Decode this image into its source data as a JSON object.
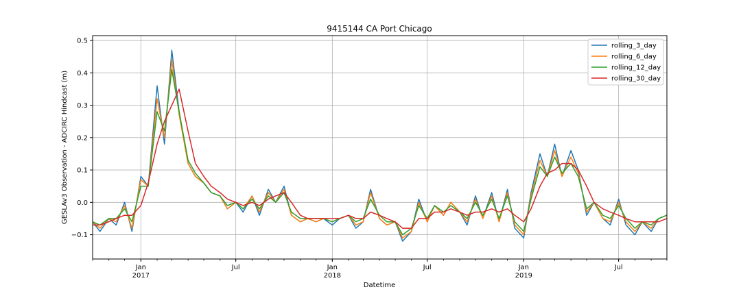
{
  "chart_data": {
    "type": "line",
    "title": "9415144 CA Port Chicago",
    "xlabel": "Datetime",
    "ylabel": "GESLAv3 Observation - ADCIRC Hindcast (m)",
    "xlim": [
      "2016-10-01",
      "2019-10-01"
    ],
    "ylim": [
      -0.175,
      0.515
    ],
    "grid": true,
    "legend_position": "top-right",
    "y_ticks": [
      -0.1,
      0.0,
      0.1,
      0.2,
      0.3,
      0.4,
      0.5
    ],
    "y_tick_labels": [
      "−0.1",
      "0.0",
      "0.1",
      "0.2",
      "0.3",
      "0.4",
      "0.5"
    ],
    "x_major_ticks": [
      {
        "date": "2017-01-01",
        "label": "Jan",
        "sublabel": "2017"
      },
      {
        "date": "2017-07-01",
        "label": "Jul",
        "sublabel": ""
      },
      {
        "date": "2018-01-01",
        "label": "Jan",
        "sublabel": "2018"
      },
      {
        "date": "2018-07-01",
        "label": "Jul",
        "sublabel": ""
      },
      {
        "date": "2019-01-01",
        "label": "Jan",
        "sublabel": "2019"
      },
      {
        "date": "2019-07-01",
        "label": "Jul",
        "sublabel": ""
      }
    ],
    "x": [
      "2016-10-01",
      "2016-10-15",
      "2016-11-01",
      "2016-11-15",
      "2016-12-01",
      "2016-12-15",
      "2017-01-01",
      "2017-01-15",
      "2017-02-01",
      "2017-02-15",
      "2017-03-01",
      "2017-03-15",
      "2017-04-01",
      "2017-04-15",
      "2017-05-01",
      "2017-05-15",
      "2017-06-01",
      "2017-06-15",
      "2017-07-01",
      "2017-07-15",
      "2017-08-01",
      "2017-08-15",
      "2017-09-01",
      "2017-09-15",
      "2017-10-01",
      "2017-10-15",
      "2017-11-01",
      "2017-11-15",
      "2017-12-01",
      "2017-12-15",
      "2018-01-01",
      "2018-01-15",
      "2018-02-01",
      "2018-02-15",
      "2018-03-01",
      "2018-03-15",
      "2018-04-01",
      "2018-04-15",
      "2018-05-01",
      "2018-05-15",
      "2018-06-01",
      "2018-06-15",
      "2018-07-01",
      "2018-07-15",
      "2018-08-01",
      "2018-08-15",
      "2018-09-01",
      "2018-09-15",
      "2018-10-01",
      "2018-10-15",
      "2018-11-01",
      "2018-11-15",
      "2018-12-01",
      "2018-12-15",
      "2019-01-01",
      "2019-01-15",
      "2019-02-01",
      "2019-02-15",
      "2019-03-01",
      "2019-03-15",
      "2019-04-01",
      "2019-04-15",
      "2019-05-01",
      "2019-05-15",
      "2019-06-01",
      "2019-06-15",
      "2019-07-01",
      "2019-07-15",
      "2019-08-01",
      "2019-08-15",
      "2019-09-01",
      "2019-09-15",
      "2019-10-01"
    ],
    "series": [
      {
        "name": "rolling_3_day",
        "color": "#1f77b4",
        "values": [
          -0.06,
          -0.09,
          -0.05,
          -0.07,
          0.0,
          -0.09,
          0.08,
          0.05,
          0.36,
          0.18,
          0.47,
          0.28,
          0.12,
          0.08,
          0.06,
          0.03,
          0.02,
          -0.02,
          0.0,
          -0.03,
          0.02,
          -0.04,
          0.04,
          0.0,
          0.05,
          -0.04,
          -0.06,
          -0.05,
          -0.06,
          -0.05,
          -0.07,
          -0.05,
          -0.04,
          -0.08,
          -0.06,
          0.04,
          -0.05,
          -0.07,
          -0.06,
          -0.12,
          -0.09,
          0.01,
          -0.06,
          -0.01,
          -0.04,
          0.0,
          -0.03,
          -0.07,
          0.02,
          -0.05,
          0.03,
          -0.06,
          0.04,
          -0.08,
          -0.11,
          0.03,
          0.15,
          0.08,
          0.18,
          0.08,
          0.16,
          0.1,
          -0.04,
          0.0,
          -0.05,
          -0.07,
          0.01,
          -0.07,
          -0.1,
          -0.06,
          -0.09,
          -0.05,
          -0.04
        ]
      },
      {
        "name": "rolling_6_day",
        "color": "#ff7f0e",
        "values": [
          -0.06,
          -0.08,
          -0.05,
          -0.06,
          -0.01,
          -0.08,
          0.07,
          0.05,
          0.32,
          0.2,
          0.44,
          0.27,
          0.12,
          0.08,
          0.06,
          0.03,
          0.02,
          -0.02,
          0.0,
          -0.02,
          0.02,
          -0.03,
          0.03,
          0.0,
          0.04,
          -0.04,
          -0.06,
          -0.05,
          -0.06,
          -0.05,
          -0.06,
          -0.05,
          -0.04,
          -0.07,
          -0.06,
          0.03,
          -0.05,
          -0.07,
          -0.06,
          -0.11,
          -0.09,
          0.0,
          -0.06,
          -0.01,
          -0.04,
          0.0,
          -0.03,
          -0.06,
          0.01,
          -0.05,
          0.02,
          -0.06,
          0.03,
          -0.07,
          -0.1,
          0.02,
          0.13,
          0.08,
          0.16,
          0.08,
          0.14,
          0.09,
          -0.03,
          0.0,
          -0.05,
          -0.06,
          0.0,
          -0.06,
          -0.09,
          -0.06,
          -0.08,
          -0.05,
          -0.04
        ]
      },
      {
        "name": "rolling_12_day",
        "color": "#2ca02c",
        "values": [
          -0.06,
          -0.07,
          -0.05,
          -0.05,
          -0.02,
          -0.06,
          0.05,
          0.05,
          0.28,
          0.22,
          0.41,
          0.28,
          0.13,
          0.09,
          0.06,
          0.03,
          0.02,
          -0.01,
          0.0,
          -0.02,
          0.01,
          -0.02,
          0.02,
          0.0,
          0.03,
          -0.03,
          -0.05,
          -0.05,
          -0.05,
          -0.05,
          -0.06,
          -0.05,
          -0.04,
          -0.06,
          -0.05,
          0.01,
          -0.04,
          -0.06,
          -0.06,
          -0.1,
          -0.08,
          -0.01,
          -0.05,
          -0.01,
          -0.03,
          -0.01,
          -0.03,
          -0.05,
          0.0,
          -0.04,
          0.01,
          -0.05,
          0.02,
          -0.06,
          -0.09,
          0.01,
          0.11,
          0.08,
          0.14,
          0.09,
          0.12,
          0.08,
          -0.02,
          0.0,
          -0.04,
          -0.05,
          -0.01,
          -0.05,
          -0.08,
          -0.06,
          -0.07,
          -0.05,
          -0.04
        ]
      },
      {
        "name": "rolling_30_day",
        "color": "#d62728",
        "values": [
          -0.07,
          -0.07,
          -0.06,
          -0.05,
          -0.04,
          -0.04,
          -0.01,
          0.06,
          0.18,
          0.25,
          0.3,
          0.35,
          0.22,
          0.12,
          0.08,
          0.05,
          0.03,
          0.01,
          0.0,
          -0.01,
          0.0,
          -0.01,
          0.01,
          0.02,
          0.03,
          0.0,
          -0.04,
          -0.05,
          -0.05,
          -0.05,
          -0.05,
          -0.05,
          -0.04,
          -0.05,
          -0.05,
          -0.03,
          -0.04,
          -0.05,
          -0.06,
          -0.08,
          -0.08,
          -0.05,
          -0.05,
          -0.03,
          -0.03,
          -0.02,
          -0.03,
          -0.04,
          -0.03,
          -0.03,
          -0.02,
          -0.03,
          -0.02,
          -0.04,
          -0.06,
          -0.02,
          0.05,
          0.09,
          0.1,
          0.12,
          0.12,
          0.1,
          0.05,
          0.0,
          -0.02,
          -0.03,
          -0.04,
          -0.05,
          -0.06,
          -0.06,
          -0.06,
          -0.06,
          -0.05
        ]
      }
    ]
  }
}
